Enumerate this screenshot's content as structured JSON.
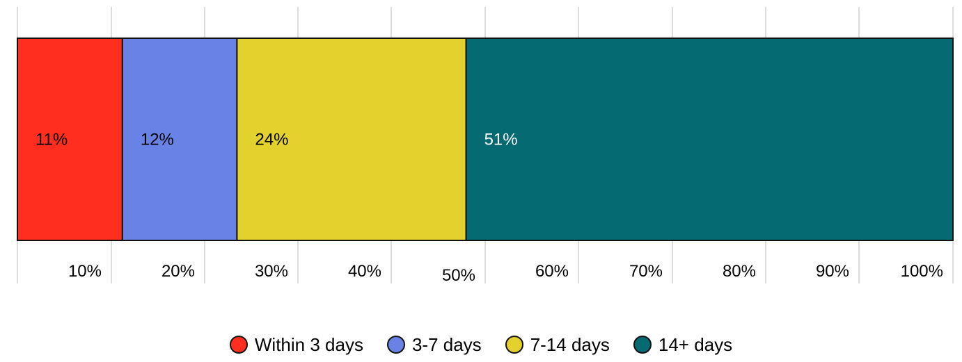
{
  "chart_data": {
    "type": "bar",
    "orientation": "horizontal-stacked-100",
    "series": [
      {
        "name": "Within 3 days",
        "value": 11,
        "label": "11%",
        "color": "#ff2e1f",
        "label_color": "#000000"
      },
      {
        "name": "3-7 days",
        "value": 12,
        "label": "12%",
        "color": "#6882e6",
        "label_color": "#000000"
      },
      {
        "name": "7-14 days",
        "value": 24,
        "label": "24%",
        "color": "#e3d22d",
        "label_color": "#000000"
      },
      {
        "name": "14+ days",
        "value": 51,
        "label": "51%",
        "color": "#066a73",
        "label_color": "#ffffff"
      }
    ],
    "xlim": [
      0,
      100
    ],
    "xticks": [
      10,
      20,
      30,
      40,
      50,
      60,
      70,
      80,
      90,
      100
    ],
    "xtick_labels": [
      "10%",
      "20%",
      "30%",
      "40%",
      "50%",
      "60%",
      "70%",
      "80%",
      "90%",
      "100%"
    ],
    "grid": true,
    "legend_position": "bottom",
    "title": "",
    "xlabel": "",
    "ylabel": ""
  }
}
